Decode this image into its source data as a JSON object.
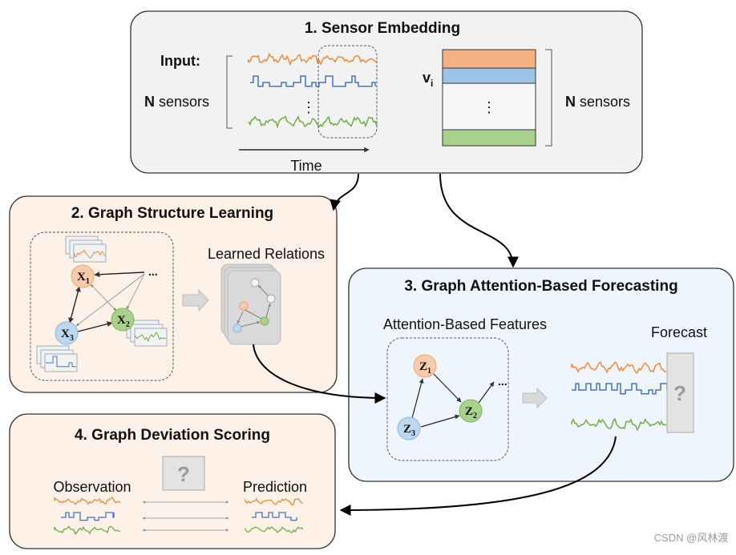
{
  "panels": {
    "embedding": {
      "title": "1. Sensor Embedding",
      "input_label": "Input:",
      "n_bold": "N",
      "sensors_label": " sensors",
      "time_label": "Time",
      "vector_label": "v",
      "vector_sub": "i",
      "ellipsis": "⋮"
    },
    "structure": {
      "title": "2. Graph Structure Learning",
      "learned_label": "Learned Relations",
      "nodes": [
        {
          "letter": "X",
          "sub": "1"
        },
        {
          "letter": "X",
          "sub": "2"
        },
        {
          "letter": "X",
          "sub": "3"
        }
      ],
      "more": "..."
    },
    "forecasting": {
      "title": "3. Graph Attention-Based Forecasting",
      "features_label": "Attention-Based Features",
      "forecast_label": "Forecast",
      "unknown": "?",
      "nodes": [
        {
          "letter": "Z",
          "sub": "1"
        },
        {
          "letter": "Z",
          "sub": "2"
        },
        {
          "letter": "Z",
          "sub": "3"
        }
      ],
      "more": "..."
    },
    "scoring": {
      "title": "4. Graph Deviation Scoring",
      "observation_label": "Observation",
      "prediction_label": "Prediction",
      "unknown": "?"
    }
  },
  "colors": {
    "orange": "#f08a3c",
    "blue": "#4472c4",
    "green": "#70ad47",
    "orange_fill": "#f4b183",
    "blue_fill": "#9dc3e6",
    "green_fill": "#a9d18e",
    "peach_bg": "#fdf1e8",
    "blue_bg": "#eef5fd",
    "gray_bg": "#f2f2f2"
  },
  "watermark": "CSDN @风林渡"
}
